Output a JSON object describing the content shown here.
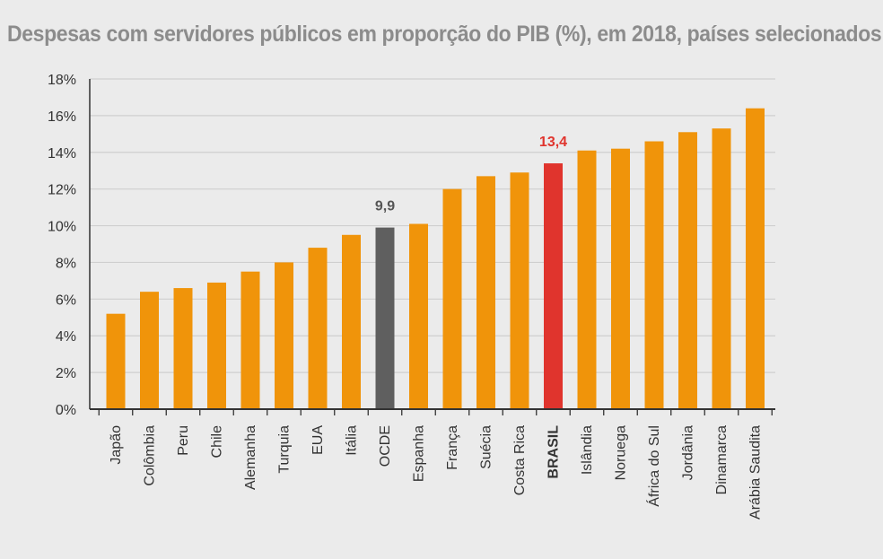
{
  "chart_data": {
    "type": "bar",
    "title": "Despesas com servidores públicos em proporção do PIB (%), em 2018, países selecionados",
    "xlabel": "",
    "ylabel": "",
    "ylim": [
      0,
      18
    ],
    "yticks": [
      0,
      2,
      4,
      6,
      8,
      10,
      12,
      14,
      16,
      18
    ],
    "ytick_labels": [
      "0%",
      "2%",
      "4%",
      "6%",
      "8%",
      "10%",
      "12%",
      "14%",
      "16%",
      "18%"
    ],
    "grid": true,
    "categories": [
      "Japão",
      "Colômbia",
      "Peru",
      "Chile",
      "Alemanha",
      "Turquia",
      "EUA",
      "Itália",
      "OCDE",
      "Espanha",
      "França",
      "Suécia",
      "Costa Rica",
      "BRASIL",
      "Islândia",
      "Noruega",
      "África do Sul",
      "Jordânia",
      "Dinamarca",
      "Arábia Saudita"
    ],
    "values": [
      5.2,
      6.4,
      6.6,
      6.9,
      7.5,
      8.0,
      8.8,
      9.5,
      9.9,
      10.1,
      12.0,
      12.7,
      12.9,
      13.4,
      14.1,
      14.2,
      14.6,
      15.1,
      15.3,
      16.4
    ],
    "highlights": [
      {
        "category": "OCDE",
        "label": "9,9",
        "bar_color": "#5f5f5f",
        "label_color": "#555555"
      },
      {
        "category": "BRASIL",
        "label": "13,4",
        "bar_color": "#e0342d",
        "label_color": "#e0342d"
      }
    ],
    "colors": {
      "default_bar": "#f0940a",
      "grid": "#cfcfcf",
      "axis": "#333333",
      "tick_text": "#333333",
      "ocde_tick": "#9a9a9a",
      "brasil_tick": "#e0342d"
    }
  }
}
